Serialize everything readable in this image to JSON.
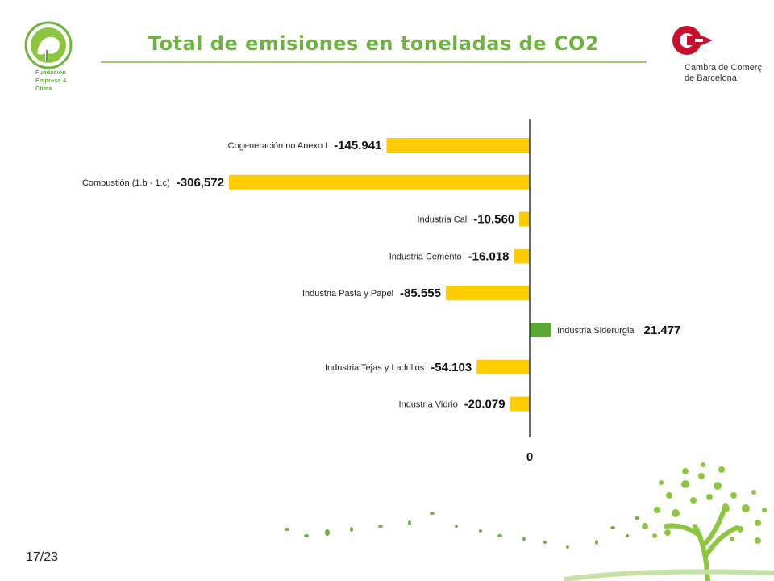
{
  "header": {
    "title": "Total de emisiones en toneladas de CO2",
    "left_logo": {
      "icon": "fundacion-tree-logo-icon",
      "lines": [
        "Fundación",
        "Empresa &",
        "Clima"
      ]
    },
    "right_logo": {
      "icon": "cambra-c-logo-icon",
      "lines": [
        "Cambra de Comerç",
        "de Barcelona"
      ]
    }
  },
  "chart_data": {
    "type": "bar",
    "orientation": "horizontal",
    "title": "Total de emisiones en toneladas de CO2",
    "categories": [
      "Cogeneración no Anexo I",
      "Combustión (1.b - 1.c)",
      "Industria Cal",
      "Industria Cemento",
      "Industria Pasta y Papel",
      "Industria Siderurgia",
      "Industria Tejas y Ladrillos",
      "Industria Vidrio"
    ],
    "values": [
      -145941,
      -306572,
      -10560,
      -16018,
      -85555,
      21477,
      -54103,
      -20079
    ],
    "value_labels": [
      "-145.941",
      "-306,572",
      "-10.560",
      "-16.018",
      "-85.555",
      "21.477",
      "-54.103",
      "-20.079"
    ],
    "zero_tick_label": "0",
    "colors": {
      "negative": "#ffcc00",
      "positive": "#5aa732"
    },
    "grid": false
  },
  "footer": {
    "page_number": "17/23",
    "decoration": "green-tree-icon"
  }
}
